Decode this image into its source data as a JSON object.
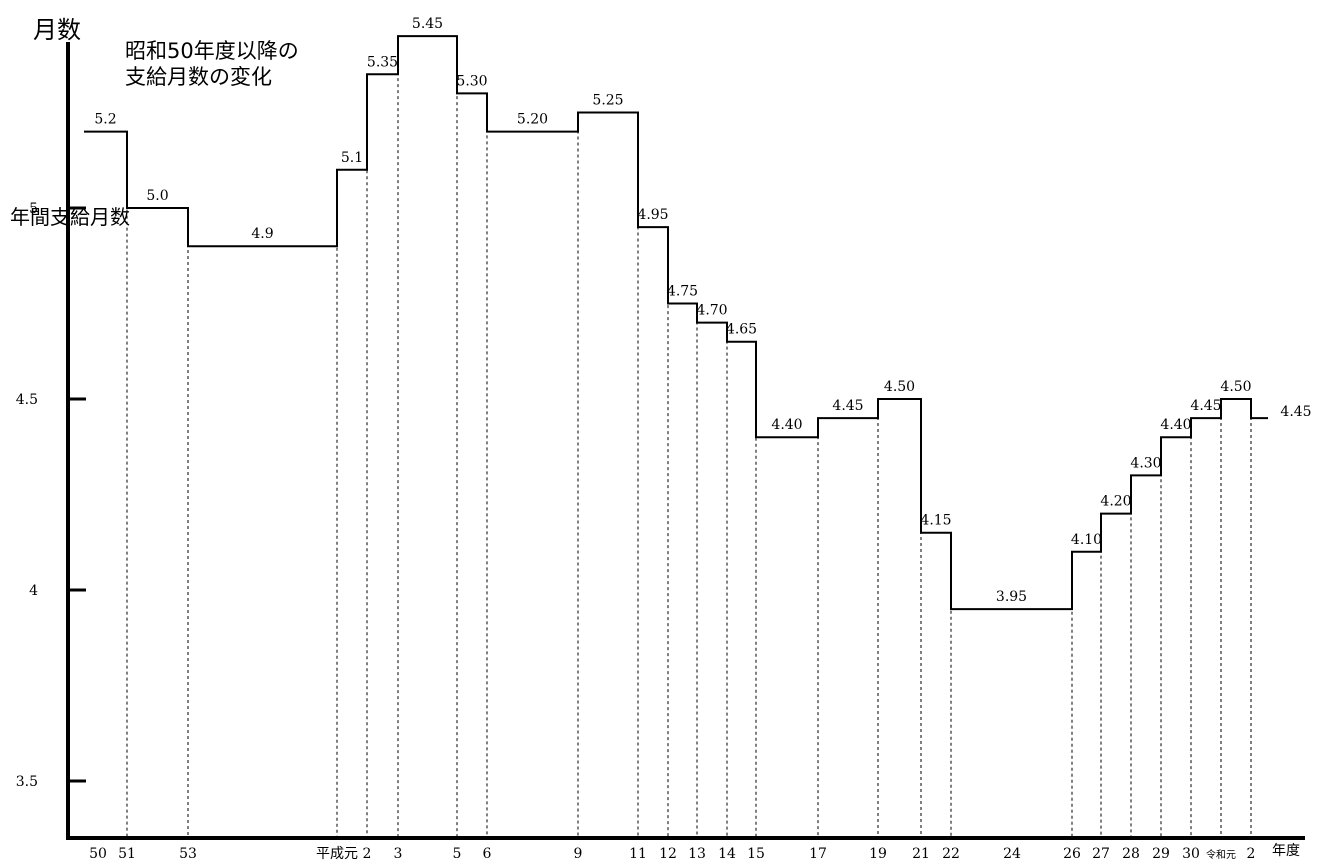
{
  "chart_data": {
    "type": "line",
    "step": true,
    "title_lines": [
      "昭和50年度以降の",
      "支給月数の変化"
    ],
    "ylabel_top": "月数",
    "ylabel_side": "年間支給月数",
    "xlabel": "年度",
    "ylim": [
      3.35,
      5.5
    ],
    "yticks": [
      3.5,
      4,
      4.5,
      5
    ],
    "ytick_labels": [
      "3.5",
      "4",
      "4.5",
      "5"
    ],
    "grid": false,
    "steps": [
      {
        "x": "50",
        "value_label": "5.2",
        "value": 5.2
      },
      {
        "x": "51",
        "value_label": "5.0",
        "value": 5.0
      },
      {
        "x": "53",
        "value_label": "4.9",
        "value": 4.9
      },
      {
        "x": "平成元",
        "value_label": "5.1",
        "value": 5.1
      },
      {
        "x": "2",
        "value_label": "5.35",
        "value": 5.35
      },
      {
        "x": "3",
        "value_label": "5.45",
        "value": 5.45
      },
      {
        "x": "5",
        "value_label": "5.30",
        "value": 5.3
      },
      {
        "x": "6",
        "value_label": "5.20",
        "value": 5.2
      },
      {
        "x": "9",
        "value_label": "5.25",
        "value": 5.25
      },
      {
        "x": "11",
        "value_label": "4.95",
        "value": 4.95
      },
      {
        "x": "12",
        "value_label": "4.75",
        "value": 4.75
      },
      {
        "x": "13",
        "value_label": "4.70",
        "value": 4.7
      },
      {
        "x": "14",
        "value_label": "4.65",
        "value": 4.65
      },
      {
        "x": "15",
        "value_label": "4.40",
        "value": 4.4
      },
      {
        "x": "17",
        "value_label": "4.45",
        "value": 4.45
      },
      {
        "x": "19",
        "value_label": "4.50",
        "value": 4.5
      },
      {
        "x": "21",
        "value_label": "4.15",
        "value": 4.15
      },
      {
        "x": "22",
        "value_label": "3.95",
        "value": 3.95
      },
      {
        "x": "26",
        "value_label": "4.10",
        "value": 4.1
      },
      {
        "x": "27",
        "value_label": "4.20",
        "value": 4.2
      },
      {
        "x": "28",
        "value_label": "4.30",
        "value": 4.3
      },
      {
        "x": "29",
        "value_label": "4.40",
        "value": 4.4
      },
      {
        "x": "30",
        "value_label": "4.45",
        "value": 4.45
      },
      {
        "x": "令和元",
        "value_label": "4.50",
        "value": 4.5
      },
      {
        "x": "2",
        "value_label": "4.45",
        "value": 4.45
      }
    ],
    "xtick_labels": [
      "50",
      "51",
      "53",
      "平成元",
      "2",
      "3",
      "5",
      "6",
      "9",
      "11",
      "12",
      "13",
      "14",
      "15",
      "17",
      "19",
      "21",
      "22",
      "24",
      "26",
      "27",
      "28",
      "29",
      "30",
      "令和元",
      "2"
    ]
  }
}
